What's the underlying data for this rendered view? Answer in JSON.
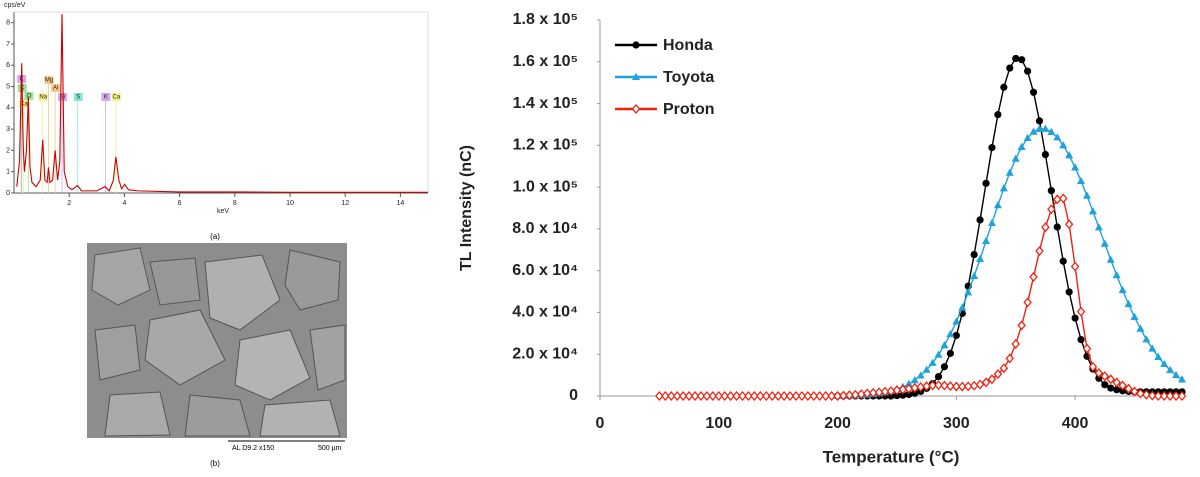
{
  "chart_data": [
    {
      "type": "line",
      "x_label": "keV",
      "y_label": "cps/eV",
      "caption": "(a)",
      "xlim": [
        0,
        15
      ],
      "xticks": [
        2,
        4,
        6,
        8,
        10,
        12,
        14
      ],
      "ylim": [
        0,
        8.5
      ],
      "yticks": [
        0,
        1,
        2,
        3,
        4,
        5,
        6,
        7,
        8
      ],
      "x": [
        0.1,
        0.2,
        0.28,
        0.32,
        0.34,
        0.38,
        0.45,
        0.52,
        0.58,
        0.65,
        0.8,
        0.95,
        1.04,
        1.12,
        1.2,
        1.25,
        1.3,
        1.4,
        1.49,
        1.58,
        1.66,
        1.74,
        1.82,
        1.95,
        2.1,
        2.3,
        2.45,
        2.7,
        3.0,
        3.3,
        3.45,
        3.6,
        3.69,
        3.8,
        3.9,
        4.01,
        4.15,
        4.5,
        6,
        8,
        10,
        12,
        14,
        15
      ],
      "series": [
        {
          "color": "#cc0000",
          "values": [
            0.3,
            1.5,
            6.1,
            3.0,
            2.0,
            1.0,
            2.0,
            4.5,
            1.2,
            0.5,
            0.3,
            0.6,
            2.5,
            0.6,
            0.5,
            1.2,
            0.5,
            0.6,
            2.0,
            0.6,
            1.5,
            8.4,
            1.0,
            0.3,
            0.15,
            0.35,
            0.1,
            0.1,
            0.1,
            0.3,
            0.1,
            0.6,
            1.7,
            0.6,
            0.2,
            0.4,
            0.15,
            0.1,
            0.05,
            0.05,
            0.03,
            0.03,
            0.03,
            0.03
          ]
        }
      ],
      "peak_labels": [
        {
          "label": "K",
          "x": 0.26
        },
        {
          "label": "C",
          "x": 0.28
        },
        {
          "label": "O",
          "x": 0.52
        },
        {
          "label": "Ca",
          "x": 0.34
        },
        {
          "label": "Mg",
          "x": 1.25
        },
        {
          "label": "Al",
          "x": 1.49
        },
        {
          "label": "Na",
          "x": 1.04
        },
        {
          "label": "Si",
          "x": 1.74
        },
        {
          "label": "S",
          "x": 2.31
        },
        {
          "label": "K",
          "x": 3.31
        },
        {
          "label": "Ca",
          "x": 3.69
        }
      ]
    },
    {
      "type": "line",
      "x_label": "Temperature (°C)",
      "y_label": "TL Intensity (nC)",
      "legend": "upper left",
      "xlim": [
        0,
        490
      ],
      "xticks": [
        0,
        100,
        200,
        300,
        400
      ],
      "ylim": [
        0,
        180000
      ],
      "yticks": [
        0,
        {
          "value": 20000,
          "label": "2.0 x 10⁴"
        },
        {
          "value": 40000,
          "label": "4.0 x 10⁴"
        },
        {
          "value": 60000,
          "label": "6.0 x 10⁴"
        },
        {
          "value": 80000,
          "label": "8.0 x 10⁴"
        },
        {
          "value": 100000,
          "label": "1.0 x 10⁵"
        },
        {
          "value": 120000,
          "label": "1.2 x 10⁵"
        },
        {
          "value": 140000,
          "label": "1.4 x 10⁵"
        },
        {
          "value": 160000,
          "label": "1.6 x 10⁵"
        },
        {
          "value": 180000,
          "label": "1.8 x 10⁵"
        }
      ],
      "series": [
        {
          "name": "Honda",
          "color": "#000000",
          "marker": "circle",
          "x": [
            200,
            205,
            210,
            215,
            220,
            225,
            230,
            235,
            240,
            245,
            250,
            255,
            260,
            265,
            270,
            275,
            280,
            285,
            290,
            295,
            300,
            305,
            310,
            315,
            320,
            325,
            330,
            335,
            340,
            345,
            350,
            355,
            360,
            365,
            370,
            375,
            380,
            385,
            390,
            395,
            400,
            405,
            410,
            415,
            420,
            425,
            430,
            435,
            440,
            445,
            450,
            455,
            460,
            465,
            470,
            475,
            480,
            485,
            490
          ],
          "values": [
            0,
            0,
            0,
            0,
            0,
            0,
            0,
            0,
            0,
            0,
            210,
            400,
            730,
            1300,
            2200,
            3700,
            5900,
            9300,
            14000,
            20400,
            29000,
            39500,
            52600,
            67700,
            84300,
            101800,
            118900,
            134700,
            147800,
            157000,
            161600,
            161000,
            155500,
            145400,
            131700,
            115600,
            98300,
            80900,
            64500,
            49800,
            37300,
            27000,
            19000,
            12900,
            8500,
            5400,
            3800,
            3000,
            2500,
            2200,
            2000,
            2000,
            2000,
            2000,
            2000,
            2000,
            2000,
            2000,
            2000
          ]
        },
        {
          "name": "Toyota",
          "color": "#1ca3dc",
          "marker": "triangle",
          "x": [
            200,
            205,
            210,
            215,
            220,
            225,
            230,
            235,
            240,
            245,
            250,
            255,
            260,
            265,
            270,
            275,
            280,
            285,
            290,
            295,
            300,
            305,
            310,
            315,
            320,
            325,
            330,
            335,
            340,
            345,
            350,
            355,
            360,
            365,
            370,
            375,
            380,
            385,
            390,
            395,
            400,
            405,
            410,
            415,
            420,
            425,
            430,
            435,
            440,
            445,
            450,
            455,
            460,
            465,
            470,
            475,
            480,
            485,
            490
          ],
          "values": [
            90,
            130,
            200,
            290,
            430,
            610,
            880,
            1250,
            1730,
            2400,
            3240,
            4350,
            5770,
            7560,
            9800,
            12550,
            15850,
            19750,
            24300,
            29600,
            35600,
            42300,
            49600,
            57400,
            65600,
            74200,
            82800,
            91300,
            99400,
            106900,
            113600,
            119200,
            123500,
            126500,
            127900,
            127900,
            126400,
            123800,
            120000,
            115200,
            109400,
            102900,
            95900,
            88400,
            80700,
            72900,
            65200,
            57800,
            50700,
            44000,
            37800,
            32200,
            27100,
            22700,
            18700,
            15300,
            12400,
            10000,
            7900
          ]
        },
        {
          "name": "Proton",
          "color": "#ee2211",
          "marker": "diamond",
          "x": [
            50,
            55,
            60,
            65,
            70,
            75,
            80,
            85,
            90,
            95,
            100,
            105,
            110,
            115,
            120,
            125,
            130,
            135,
            140,
            145,
            150,
            155,
            160,
            165,
            170,
            175,
            180,
            185,
            190,
            195,
            200,
            205,
            210,
            215,
            220,
            225,
            230,
            235,
            240,
            245,
            250,
            255,
            260,
            265,
            270,
            275,
            280,
            285,
            290,
            295,
            300,
            305,
            310,
            315,
            320,
            325,
            330,
            335,
            340,
            345,
            350,
            355,
            360,
            365,
            370,
            375,
            380,
            385,
            390,
            395,
            400,
            405,
            410,
            415,
            420,
            425,
            430,
            435,
            440,
            445,
            450,
            455,
            460,
            465,
            470,
            475,
            480,
            485,
            490
          ],
          "values": [
            0,
            0,
            0,
            0,
            0,
            0,
            0,
            0,
            0,
            0,
            0,
            0,
            0,
            0,
            0,
            0,
            0,
            0,
            0,
            0,
            0,
            0,
            0,
            0,
            0,
            0,
            0,
            0,
            0,
            0,
            0,
            200,
            400,
            600,
            900,
            1200,
            1500,
            1800,
            2100,
            2400,
            2800,
            3100,
            3500,
            3900,
            4300,
            4700,
            5000,
            5200,
            5000,
            4700,
            4500,
            4500,
            4600,
            4900,
            5500,
            6500,
            8000,
            10500,
            13300,
            18000,
            24900,
            33800,
            44800,
            57000,
            69400,
            80800,
            89400,
            94100,
            94600,
            82200,
            62000,
            40400,
            22700,
            14000,
            11000,
            9500,
            8000,
            6500,
            5000,
            3500,
            2200,
            1200,
            600,
            200,
            0,
            0,
            0,
            0,
            0
          ]
        }
      ]
    }
  ],
  "image": {
    "scale_bar_text": "AL   D9.2   x150",
    "scale_bar_label": "500 µm",
    "caption": "(b)"
  }
}
